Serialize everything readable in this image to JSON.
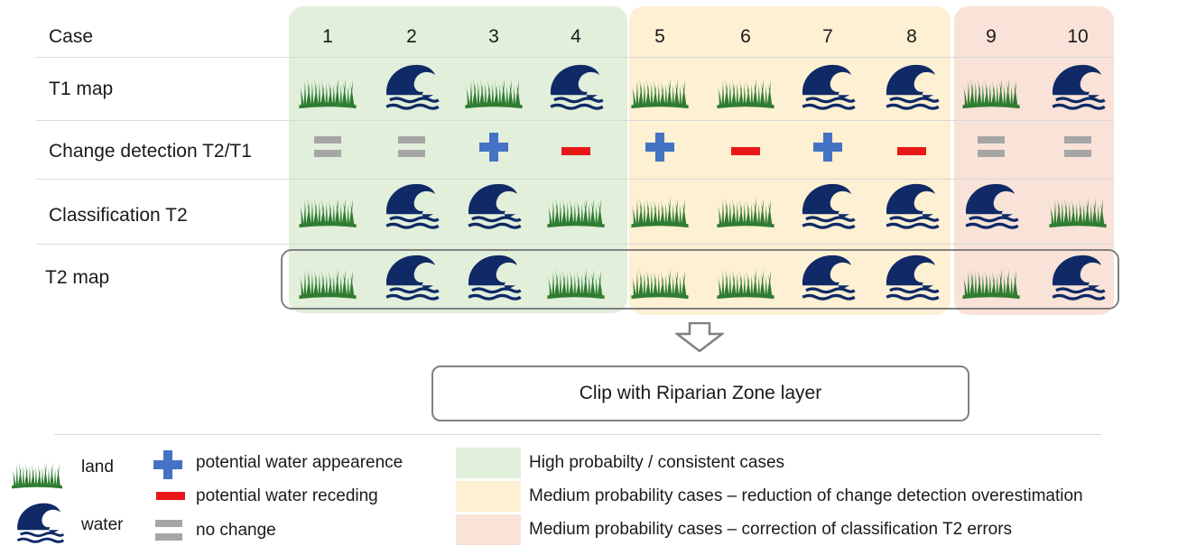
{
  "header": {
    "case_label": "Case",
    "cases": [
      "1",
      "2",
      "3",
      "4",
      "5",
      "6",
      "7",
      "8",
      "9",
      "10"
    ]
  },
  "rows": {
    "t1_map": "T1 map",
    "change_detection": "Change detection T2/T1",
    "classification": "Classification T2",
    "t2_map": "T2 map"
  },
  "grid": {
    "t1_map": [
      "land",
      "water",
      "land",
      "water",
      "land",
      "land",
      "water",
      "water",
      "land",
      "water"
    ],
    "change_detection": [
      "no-change",
      "no-change",
      "appear",
      "recede",
      "appear",
      "recede",
      "appear",
      "recede",
      "no-change",
      "no-change"
    ],
    "classification": [
      "land",
      "water",
      "water",
      "land",
      "land",
      "land",
      "water",
      "water",
      "water",
      "land"
    ],
    "t2_map": [
      "land",
      "water",
      "water",
      "land",
      "land",
      "land",
      "water",
      "water",
      "land",
      "water"
    ]
  },
  "process_box": {
    "label": "Clip with Riparian Zone layer"
  },
  "legend": {
    "land": "land",
    "water": "water",
    "appear": "potential water appearence",
    "recede": "potential water receding",
    "no_change": "no change",
    "high": "High probabilty  / consistent cases",
    "medium_overestimation": "Medium probability cases – reduction of change detection overestimation",
    "medium_correction": "Medium probability cases – correction of classification T2 errors"
  },
  "colors": {
    "high_zone": "#e2efdb",
    "medium_overestimation_zone": "#fdf0d3",
    "medium_correction_zone": "#f9e2d7",
    "land_icon": "#2f7d32",
    "water_icon": "#0f2a66",
    "plus": "#4472c4",
    "minus": "#e81818",
    "equal": "#a6a6a6"
  }
}
